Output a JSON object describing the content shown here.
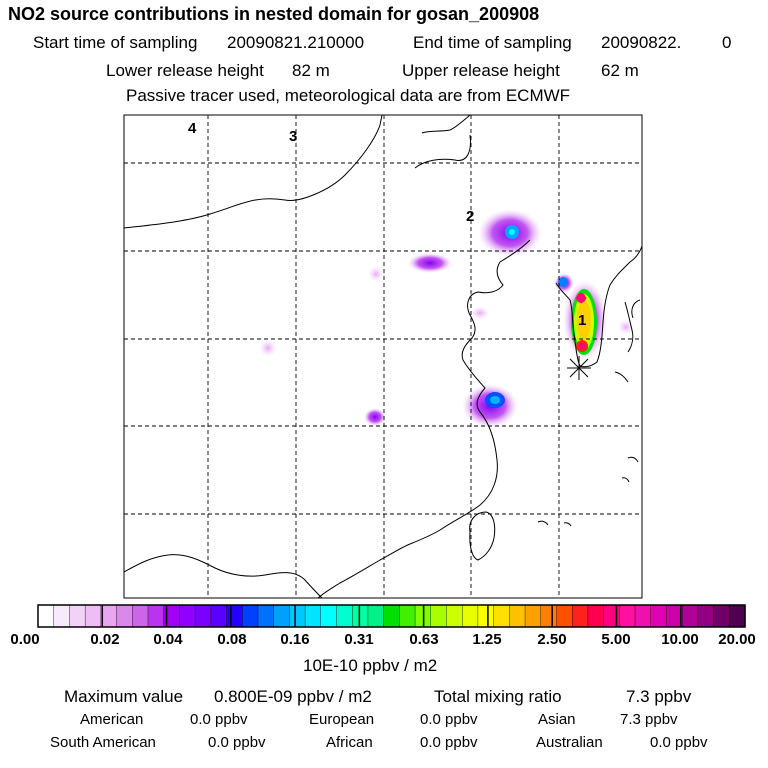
{
  "header": {
    "title": "NO2 source contributions in nested domain for gosan_200908",
    "start_label": "Start time of sampling",
    "start_value": "20090821.210000",
    "end_label": "End time of sampling",
    "end_value": "20090822.",
    "end_value_2": "0",
    "lower_label": "Lower release height",
    "lower_value": "82 m",
    "upper_label": "Upper release height",
    "upper_value": "62 m",
    "note": "Passive tracer used, meteorological data are from ECMWF"
  },
  "map": {
    "track_labels": [
      "4",
      "3",
      "2",
      "1"
    ],
    "colors": {
      "land_outline": "#000000",
      "grid": "#000000"
    }
  },
  "colorbar": {
    "tick_labels": [
      "0.00",
      "0.02",
      "0.04",
      "0.08",
      "0.16",
      "0.31",
      "0.63",
      "1.25",
      "2.50",
      "5.00",
      "10.00",
      "20.00"
    ],
    "unit": "10E-10 ppbv / m2",
    "colors": [
      "#ffffff",
      "#f8e9fb",
      "#f3d2f7",
      "#eebdf4",
      "#e8a6f1",
      "#d98ae9",
      "#cc66e8",
      "#bb33ee",
      "#a300f6",
      "#9000ff",
      "#7a00ff",
      "#5a00ff",
      "#2600ff",
      "#0040ff",
      "#0070ff",
      "#00a0ff",
      "#00c8ff",
      "#00e5ff",
      "#00ffff",
      "#00ffd0",
      "#00ffa4",
      "#00f088",
      "#00e000",
      "#40f000",
      "#80ff00",
      "#a8ff00",
      "#ccff00",
      "#e8ff00",
      "#ffff00",
      "#ffe000",
      "#ffc000",
      "#ffa000",
      "#ff8000",
      "#ff5000",
      "#ff2020",
      "#ff0050",
      "#ff0080",
      "#ff10a0",
      "#f010b0",
      "#e000b4",
      "#cc00a8",
      "#b00098",
      "#900080",
      "#700068",
      "#500050"
    ]
  },
  "footer": {
    "max_label": "Maximum value",
    "max_value": "0.800E-09 ppbv / m2",
    "total_label": "Total mixing ratio",
    "total_value": "7.3 ppbv",
    "regions": [
      {
        "name": "American",
        "value": "0.0 ppbv"
      },
      {
        "name": "European",
        "value": "0.0 ppbv"
      },
      {
        "name": "Asian",
        "value": "7.3 ppbv"
      },
      {
        "name": "South American",
        "value": "0.0 ppbv"
      },
      {
        "name": "African",
        "value": "0.0 ppbv"
      },
      {
        "name": "Australian",
        "value": "0.0 ppbv"
      }
    ]
  }
}
